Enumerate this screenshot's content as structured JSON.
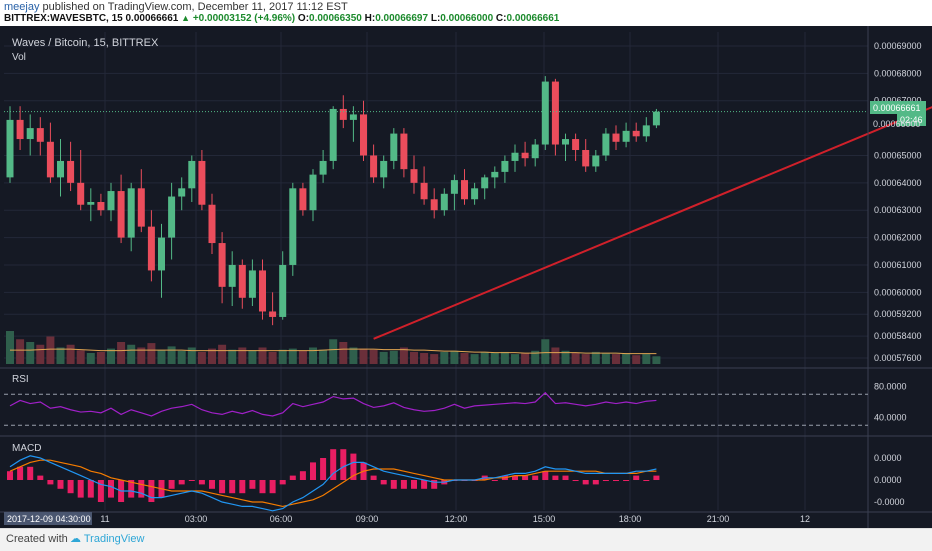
{
  "header": {
    "author": "meejay",
    "published_text": "published on TradingView.com, December 11, 2017 11:12 EST",
    "symbol": "BITTREX:WAVESBTC, 15",
    "last": "0.00066661",
    "change": "+0.00003152 (+4.96%)",
    "o_label": "O:",
    "o_val": "0.00066350",
    "h_label": "H:",
    "h_val": "0.00066697",
    "l_label": "L:",
    "l_val": "0.00066000",
    "c_label": "C:",
    "c_val": "0.00066661"
  },
  "pane": {
    "title": "Waves / Bitcoin, 15, BITTREX",
    "vol_label": "Vol",
    "rsi_label": "RSI",
    "macd_label": "MACD"
  },
  "price_axis": [
    "0.00069000",
    "0.00068000",
    "0.00067000",
    "0.00065000",
    "0.00064000",
    "0.00063000",
    "0.00062000",
    "0.00061000",
    "0.00060000",
    "0.00059200",
    "0.00058400",
    "0.00057600"
  ],
  "price_tag": "0.00066661",
  "price_tag_sub": "0.00066000",
  "timer_tag": "02:46",
  "rsi_axis": [
    "80.0000",
    "40.0000"
  ],
  "macd_axis": [
    "0.0000",
    "0.0000",
    "-0.0000"
  ],
  "time_axis": [
    "11",
    "03:00",
    "06:00",
    "09:00",
    "12:00",
    "15:00",
    "18:00",
    "21:00",
    "12"
  ],
  "date_tag": "2017-12-09 04:30:00",
  "footer": {
    "created_with": "Created with",
    "brand": "TradingView"
  },
  "colors": {
    "up": "#53b987",
    "down": "#eb4d5c",
    "trendline": "#d0202a",
    "rsi": "#a020c8",
    "macd": "#2196f3",
    "signal": "#f57c00",
    "hist": "#e91e63",
    "bg": "#151924"
  },
  "chart_data": {
    "type": "candlestick",
    "candles": [
      {
        "o": 0.000642,
        "h": 0.000668,
        "l": 0.00064,
        "c": 0.000663
      },
      {
        "o": 0.000663,
        "h": 0.000668,
        "l": 0.000652,
        "c": 0.000656
      },
      {
        "o": 0.000656,
        "h": 0.000665,
        "l": 0.00065,
        "c": 0.00066
      },
      {
        "o": 0.00066,
        "h": 0.000664,
        "l": 0.00065,
        "c": 0.000655
      },
      {
        "o": 0.000655,
        "h": 0.000662,
        "l": 0.00064,
        "c": 0.000642
      },
      {
        "o": 0.000642,
        "h": 0.000656,
        "l": 0.000635,
        "c": 0.000648
      },
      {
        "o": 0.000648,
        "h": 0.000655,
        "l": 0.000637,
        "c": 0.00064
      },
      {
        "o": 0.00064,
        "h": 0.000652,
        "l": 0.00063,
        "c": 0.000632
      },
      {
        "o": 0.000632,
        "h": 0.000638,
        "l": 0.000626,
        "c": 0.000633
      },
      {
        "o": 0.000633,
        "h": 0.000636,
        "l": 0.000628,
        "c": 0.00063
      },
      {
        "o": 0.00063,
        "h": 0.00064,
        "l": 0.000626,
        "c": 0.000637
      },
      {
        "o": 0.000637,
        "h": 0.000643,
        "l": 0.000618,
        "c": 0.00062
      },
      {
        "o": 0.00062,
        "h": 0.00064,
        "l": 0.000615,
        "c": 0.000638
      },
      {
        "o": 0.000638,
        "h": 0.000645,
        "l": 0.000622,
        "c": 0.000624
      },
      {
        "o": 0.000624,
        "h": 0.00063,
        "l": 0.000604,
        "c": 0.000608
      },
      {
        "o": 0.000608,
        "h": 0.000625,
        "l": 0.000598,
        "c": 0.00062
      },
      {
        "o": 0.00062,
        "h": 0.00064,
        "l": 0.000612,
        "c": 0.000635
      },
      {
        "o": 0.000635,
        "h": 0.000642,
        "l": 0.00063,
        "c": 0.000638
      },
      {
        "o": 0.000638,
        "h": 0.00065,
        "l": 0.000633,
        "c": 0.000648
      },
      {
        "o": 0.000648,
        "h": 0.000652,
        "l": 0.00063,
        "c": 0.000632
      },
      {
        "o": 0.000632,
        "h": 0.000636,
        "l": 0.000614,
        "c": 0.000618
      },
      {
        "o": 0.000618,
        "h": 0.000622,
        "l": 0.000596,
        "c": 0.000602
      },
      {
        "o": 0.000602,
        "h": 0.000615,
        "l": 0.000595,
        "c": 0.00061
      },
      {
        "o": 0.00061,
        "h": 0.000612,
        "l": 0.000594,
        "c": 0.000598
      },
      {
        "o": 0.000598,
        "h": 0.000612,
        "l": 0.000595,
        "c": 0.000608
      },
      {
        "o": 0.000608,
        "h": 0.000612,
        "l": 0.00059,
        "c": 0.000593
      },
      {
        "o": 0.000593,
        "h": 0.0006,
        "l": 0.000588,
        "c": 0.000591
      },
      {
        "o": 0.000591,
        "h": 0.000615,
        "l": 0.00059,
        "c": 0.00061
      },
      {
        "o": 0.00061,
        "h": 0.00064,
        "l": 0.000606,
        "c": 0.000638
      },
      {
        "o": 0.000638,
        "h": 0.00064,
        "l": 0.000628,
        "c": 0.00063
      },
      {
        "o": 0.00063,
        "h": 0.000645,
        "l": 0.000626,
        "c": 0.000643
      },
      {
        "o": 0.000643,
        "h": 0.000652,
        "l": 0.00064,
        "c": 0.000648
      },
      {
        "o": 0.000648,
        "h": 0.000668,
        "l": 0.000645,
        "c": 0.000667
      },
      {
        "o": 0.000667,
        "h": 0.000672,
        "l": 0.00066,
        "c": 0.000663
      },
      {
        "o": 0.000663,
        "h": 0.000668,
        "l": 0.000655,
        "c": 0.000665
      },
      {
        "o": 0.000665,
        "h": 0.00067,
        "l": 0.000648,
        "c": 0.00065
      },
      {
        "o": 0.00065,
        "h": 0.000654,
        "l": 0.00064,
        "c": 0.000642
      },
      {
        "o": 0.000642,
        "h": 0.00065,
        "l": 0.000638,
        "c": 0.000648
      },
      {
        "o": 0.000648,
        "h": 0.00066,
        "l": 0.000645,
        "c": 0.000658
      },
      {
        "o": 0.000658,
        "h": 0.00066,
        "l": 0.000642,
        "c": 0.000645
      },
      {
        "o": 0.000645,
        "h": 0.00065,
        "l": 0.000636,
        "c": 0.00064
      },
      {
        "o": 0.00064,
        "h": 0.000646,
        "l": 0.000632,
        "c": 0.000634
      },
      {
        "o": 0.000634,
        "h": 0.000638,
        "l": 0.000627,
        "c": 0.00063
      },
      {
        "o": 0.00063,
        "h": 0.000638,
        "l": 0.000628,
        "c": 0.000636
      },
      {
        "o": 0.000636,
        "h": 0.000643,
        "l": 0.00063,
        "c": 0.000641
      },
      {
        "o": 0.000641,
        "h": 0.000645,
        "l": 0.000632,
        "c": 0.000634
      },
      {
        "o": 0.000634,
        "h": 0.00064,
        "l": 0.000632,
        "c": 0.000638
      },
      {
        "o": 0.000638,
        "h": 0.000643,
        "l": 0.000634,
        "c": 0.000642
      },
      {
        "o": 0.000642,
        "h": 0.000646,
        "l": 0.000638,
        "c": 0.000644
      },
      {
        "o": 0.000644,
        "h": 0.00065,
        "l": 0.00064,
        "c": 0.000648
      },
      {
        "o": 0.000648,
        "h": 0.000654,
        "l": 0.000644,
        "c": 0.000651
      },
      {
        "o": 0.000651,
        "h": 0.000655,
        "l": 0.000646,
        "c": 0.000649
      },
      {
        "o": 0.000649,
        "h": 0.000656,
        "l": 0.000646,
        "c": 0.000654
      },
      {
        "o": 0.000654,
        "h": 0.000679,
        "l": 0.000652,
        "c": 0.000677
      },
      {
        "o": 0.000677,
        "h": 0.000678,
        "l": 0.00065,
        "c": 0.000654
      },
      {
        "o": 0.000654,
        "h": 0.000658,
        "l": 0.000648,
        "c": 0.000656
      },
      {
        "o": 0.000656,
        "h": 0.000658,
        "l": 0.000648,
        "c": 0.000652
      },
      {
        "o": 0.000652,
        "h": 0.000656,
        "l": 0.000644,
        "c": 0.000646
      },
      {
        "o": 0.000646,
        "h": 0.000652,
        "l": 0.000644,
        "c": 0.00065
      },
      {
        "o": 0.00065,
        "h": 0.00066,
        "l": 0.000648,
        "c": 0.000658
      },
      {
        "o": 0.000658,
        "h": 0.000661,
        "l": 0.000652,
        "c": 0.000655
      },
      {
        "o": 0.000655,
        "h": 0.000662,
        "l": 0.000653,
        "c": 0.000659
      },
      {
        "o": 0.000659,
        "h": 0.000662,
        "l": 0.000655,
        "c": 0.000657
      },
      {
        "o": 0.000657,
        "h": 0.000664,
        "l": 0.000655,
        "c": 0.000661
      },
      {
        "o": 0.000661,
        "h": 0.000667,
        "l": 0.00066,
        "c": 0.000666
      }
    ],
    "volume": [
      60,
      45,
      40,
      35,
      50,
      30,
      35,
      25,
      20,
      22,
      28,
      40,
      35,
      30,
      38,
      25,
      32,
      24,
      30,
      22,
      28,
      35,
      26,
      30,
      25,
      30,
      22,
      26,
      28,
      24,
      30,
      26,
      45,
      40,
      30,
      28,
      26,
      22,
      24,
      30,
      22,
      20,
      18,
      22,
      24,
      20,
      18,
      22,
      20,
      22,
      18,
      20,
      24,
      45,
      30,
      24,
      20,
      18,
      22,
      20,
      18,
      20,
      16,
      18,
      14
    ],
    "volume_ma": [
      28,
      28,
      28,
      29,
      30,
      30,
      30,
      29,
      28,
      27,
      27,
      27,
      28,
      28,
      28,
      28,
      28,
      28,
      27,
      27,
      27,
      27,
      27,
      27,
      27,
      27,
      27,
      27,
      27,
      27,
      27,
      28,
      29,
      30,
      30,
      30,
      30,
      29,
      29,
      29,
      28,
      28,
      27,
      26,
      26,
      25,
      24,
      24,
      23,
      23,
      23,
      22,
      22,
      23,
      23,
      23,
      23,
      22,
      22,
      22,
      22,
      21,
      21,
      21,
      21
    ],
    "rsi": [
      55,
      62,
      58,
      60,
      52,
      54,
      50,
      47,
      48,
      46,
      52,
      44,
      50,
      46,
      42,
      48,
      52,
      54,
      57,
      50,
      46,
      44,
      48,
      45,
      49,
      44,
      42,
      46,
      58,
      54,
      57,
      60,
      67,
      64,
      65,
      58,
      53,
      55,
      59,
      53,
      50,
      48,
      49,
      52,
      57,
      52,
      55,
      56,
      57,
      58,
      59,
      58,
      60,
      72,
      58,
      59,
      57,
      55,
      57,
      60,
      58,
      60,
      58,
      61,
      62
    ],
    "rsi_levels": [
      70,
      30
    ],
    "macd": [
      0.6,
      0.9,
      1.1,
      1.0,
      0.8,
      0.6,
      0.4,
      0.2,
      0.0,
      -0.2,
      -0.3,
      -0.5,
      -0.5,
      -0.6,
      -0.8,
      -0.8,
      -0.7,
      -0.6,
      -0.5,
      -0.6,
      -0.8,
      -1.0,
      -1.1,
      -1.2,
      -1.2,
      -1.3,
      -1.4,
      -1.3,
      -1.0,
      -0.8,
      -0.5,
      -0.2,
      0.3,
      0.6,
      0.8,
      0.8,
      0.6,
      0.4,
      0.3,
      0.2,
      0.1,
      0.0,
      -0.1,
      -0.1,
      0.0,
      0.0,
      0.0,
      0.1,
      0.1,
      0.2,
      0.3,
      0.3,
      0.4,
      0.6,
      0.5,
      0.5,
      0.4,
      0.3,
      0.3,
      0.3,
      0.3,
      0.3,
      0.4,
      0.4,
      0.5
    ],
    "signal": [
      0.4,
      0.6,
      0.8,
      0.9,
      0.9,
      0.8,
      0.7,
      0.6,
      0.4,
      0.3,
      0.1,
      0.0,
      -0.1,
      -0.2,
      -0.3,
      -0.4,
      -0.5,
      -0.5,
      -0.5,
      -0.5,
      -0.6,
      -0.7,
      -0.8,
      -0.9,
      -1.0,
      -1.0,
      -1.1,
      -1.2,
      -1.1,
      -1.0,
      -0.9,
      -0.7,
      -0.4,
      -0.1,
      0.2,
      0.4,
      0.5,
      0.5,
      0.5,
      0.4,
      0.3,
      0.2,
      0.1,
      0.0,
      0.0,
      0.0,
      0.0,
      0.0,
      0.1,
      0.1,
      0.2,
      0.2,
      0.3,
      0.4,
      0.4,
      0.4,
      0.4,
      0.4,
      0.4,
      0.3,
      0.3,
      0.3,
      0.3,
      0.4,
      0.4
    ],
    "trendline": [
      {
        "candle": 36,
        "price": 0.000583
      },
      {
        "candle": 100,
        "price": 0.000681
      }
    ]
  }
}
